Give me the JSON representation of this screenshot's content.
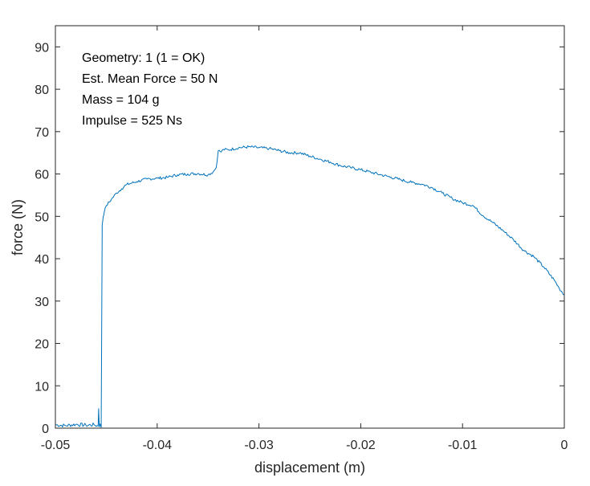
{
  "chart_data": {
    "type": "line",
    "title": "",
    "xlabel": "displacement (m)",
    "ylabel": "force (N)",
    "xlim": [
      -0.05,
      0
    ],
    "ylim": [
      0,
      95
    ],
    "xticks": [
      -0.05,
      -0.04,
      -0.03,
      -0.02,
      -0.01,
      0
    ],
    "xtick_labels": [
      "-0.05",
      "-0.04",
      "-0.03",
      "-0.02",
      "-0.01",
      "0"
    ],
    "yticks": [
      0,
      10,
      20,
      30,
      40,
      50,
      60,
      70,
      80,
      90
    ],
    "ytick_labels": [
      "0",
      "10",
      "20",
      "30",
      "40",
      "50",
      "60",
      "70",
      "80",
      "90"
    ],
    "grid": false,
    "line_color": "#0072BD",
    "annotations": [
      "Geometry: 1 (1 = OK)",
      "Est. Mean Force = 50 N",
      "Mass = 104 g",
      "Impulse = 525 Ns"
    ],
    "series": [
      {
        "x": [
          -0.05,
          -0.049,
          -0.048,
          -0.047,
          -0.0462,
          -0.0458,
          -0.04575,
          -0.04568,
          -0.0456,
          -0.0455,
          -0.0454,
          -0.0453,
          -0.0452,
          -0.045,
          -0.0445,
          -0.044,
          -0.0435,
          -0.043,
          -0.042,
          -0.041,
          -0.04,
          -0.039,
          -0.038,
          -0.037,
          -0.036,
          -0.035,
          -0.0345,
          -0.0342,
          -0.034,
          -0.0337,
          -0.0335,
          -0.033,
          -0.032,
          -0.031,
          -0.03,
          -0.029,
          -0.028,
          -0.027,
          -0.026,
          -0.025,
          -0.024,
          -0.023,
          -0.022,
          -0.021,
          -0.02,
          -0.019,
          -0.018,
          -0.017,
          -0.016,
          -0.015,
          -0.014,
          -0.013,
          -0.012,
          -0.011,
          -0.01,
          -0.009,
          -0.008,
          -0.007,
          -0.006,
          -0.005,
          -0.004,
          -0.003,
          -0.002,
          -0.001,
          -0.0005,
          0.0
        ],
        "y": [
          0.8,
          0.6,
          0.9,
          0.7,
          0.8,
          0.5,
          4.6,
          0.3,
          1.0,
          0.2,
          48.0,
          50.0,
          51.0,
          52.5,
          54.0,
          55.5,
          56.5,
          57.5,
          58.2,
          58.8,
          59.0,
          59.2,
          59.8,
          60.0,
          60.1,
          59.8,
          60.5,
          61.5,
          65.5,
          65.2,
          65.8,
          65.7,
          66.2,
          66.4,
          66.2,
          66.0,
          65.5,
          65.0,
          65.0,
          64.2,
          63.5,
          62.8,
          62.0,
          61.5,
          61.0,
          60.4,
          59.8,
          59.2,
          58.6,
          58.0,
          57.6,
          56.8,
          55.5,
          54.2,
          53.2,
          52.6,
          50.2,
          48.5,
          46.6,
          44.5,
          42.0,
          40.5,
          38.0,
          35.0,
          33.0,
          31.5
        ]
      }
    ]
  }
}
